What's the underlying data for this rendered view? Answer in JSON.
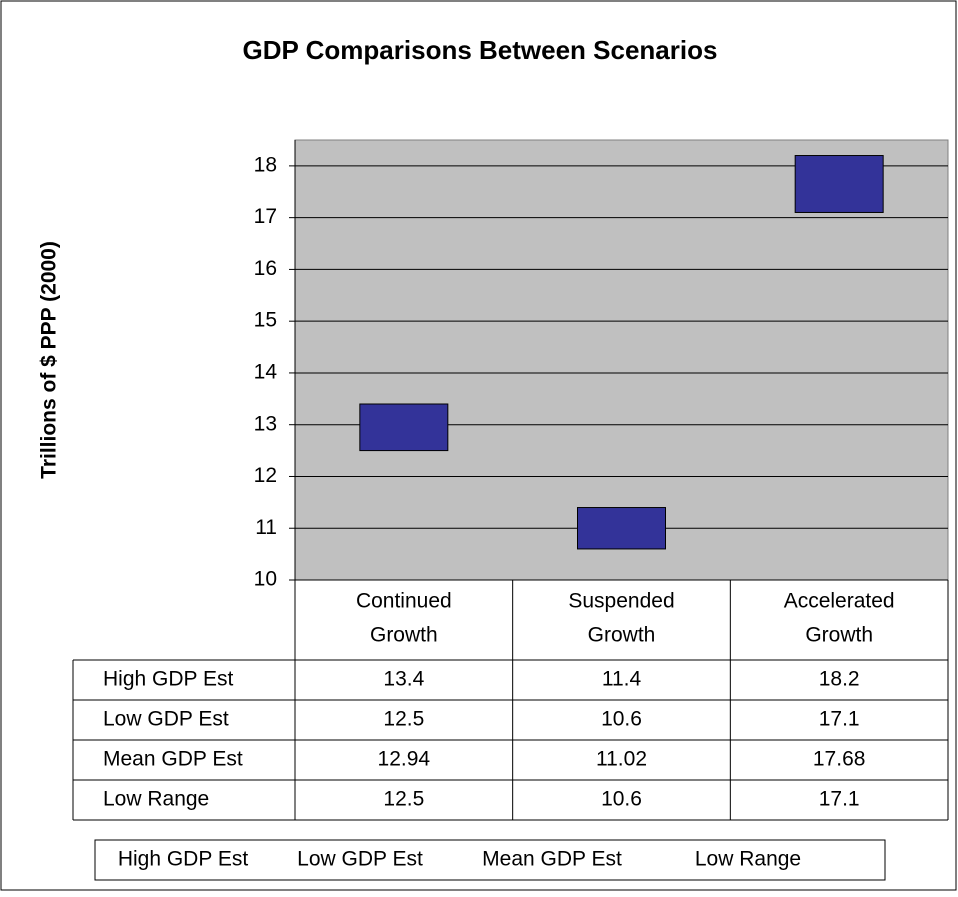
{
  "chart_data": {
    "type": "floating-bar",
    "title": "GDP Comparisons Between Scenarios",
    "y_label": "Trillions of $ PPP (2000)",
    "categories": [
      [
        "Continued",
        "Growth"
      ],
      [
        "Suspended",
        "Growth"
      ],
      [
        "Accelerated",
        "Growth"
      ]
    ],
    "series": [
      {
        "name": "High GDP Est",
        "values": [
          13.4,
          11.4,
          18.2
        ]
      },
      {
        "name": "Low GDP Est",
        "values": [
          12.5,
          10.6,
          17.1
        ]
      },
      {
        "name": "Mean GDP Est",
        "values": [
          12.94,
          11.02,
          17.68
        ]
      },
      {
        "name": "Low Range",
        "values": [
          12.5,
          10.6,
          17.1
        ]
      }
    ],
    "bar_from": 1,
    "bar_to": 0,
    "color": "#333399",
    "ylim": [
      10,
      18.5
    ],
    "yticks": [
      10,
      11,
      12,
      13,
      14,
      15,
      16,
      17,
      18
    ],
    "grid": true,
    "plot_background": "#c0c0c0",
    "data_table": true
  }
}
